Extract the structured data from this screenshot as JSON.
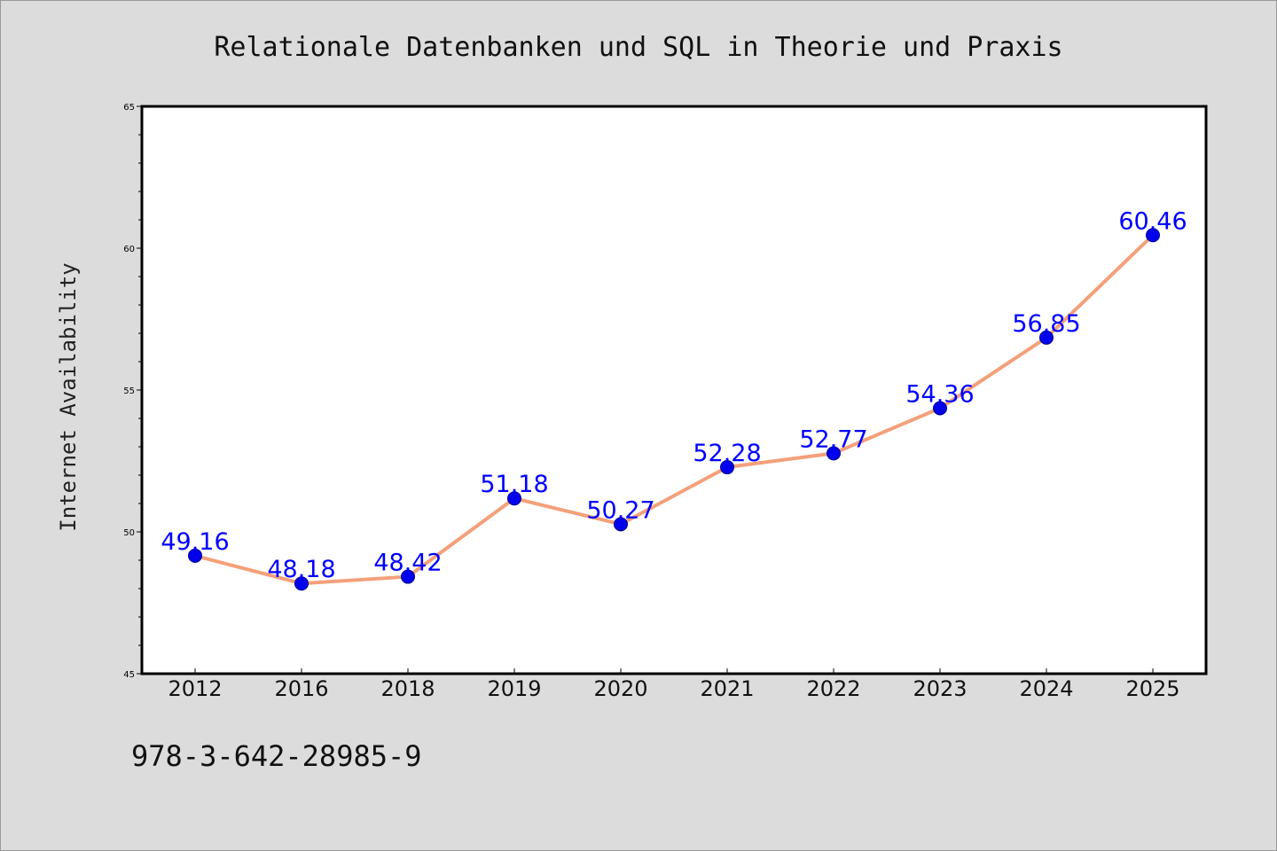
{
  "chart_data": {
    "type": "line",
    "title": "Relationale Datenbanken und SQL in Theorie und Praxis",
    "xlabel": "",
    "ylabel": "Internet Availability",
    "categories": [
      "2012",
      "2016",
      "2018",
      "2019",
      "2020",
      "2021",
      "2022",
      "2023",
      "2024",
      "2025"
    ],
    "series": [
      {
        "values": [
          49.16,
          48.18,
          48.42,
          51.18,
          50.27,
          52.28,
          52.77,
          54.36,
          56.85,
          60.46
        ],
        "data_labels": [
          "49.16",
          "48.18",
          "48.42",
          "51.18",
          "50.27",
          "52.28",
          "52.77",
          "54.36",
          "56.85",
          "60.46"
        ]
      }
    ],
    "ylim": [
      45,
      65
    ],
    "yticks": [
      "45",
      "50",
      "55",
      "60",
      "65"
    ],
    "grid": false,
    "legend": "none",
    "colors": {
      "line": "#f4a07a",
      "marker": "#0000ee",
      "labels": "#0000ff",
      "background": "#dcdcdc",
      "plot_area": "#ffffff"
    }
  },
  "footer": {
    "isbn": "978-3-642-28985-9"
  }
}
